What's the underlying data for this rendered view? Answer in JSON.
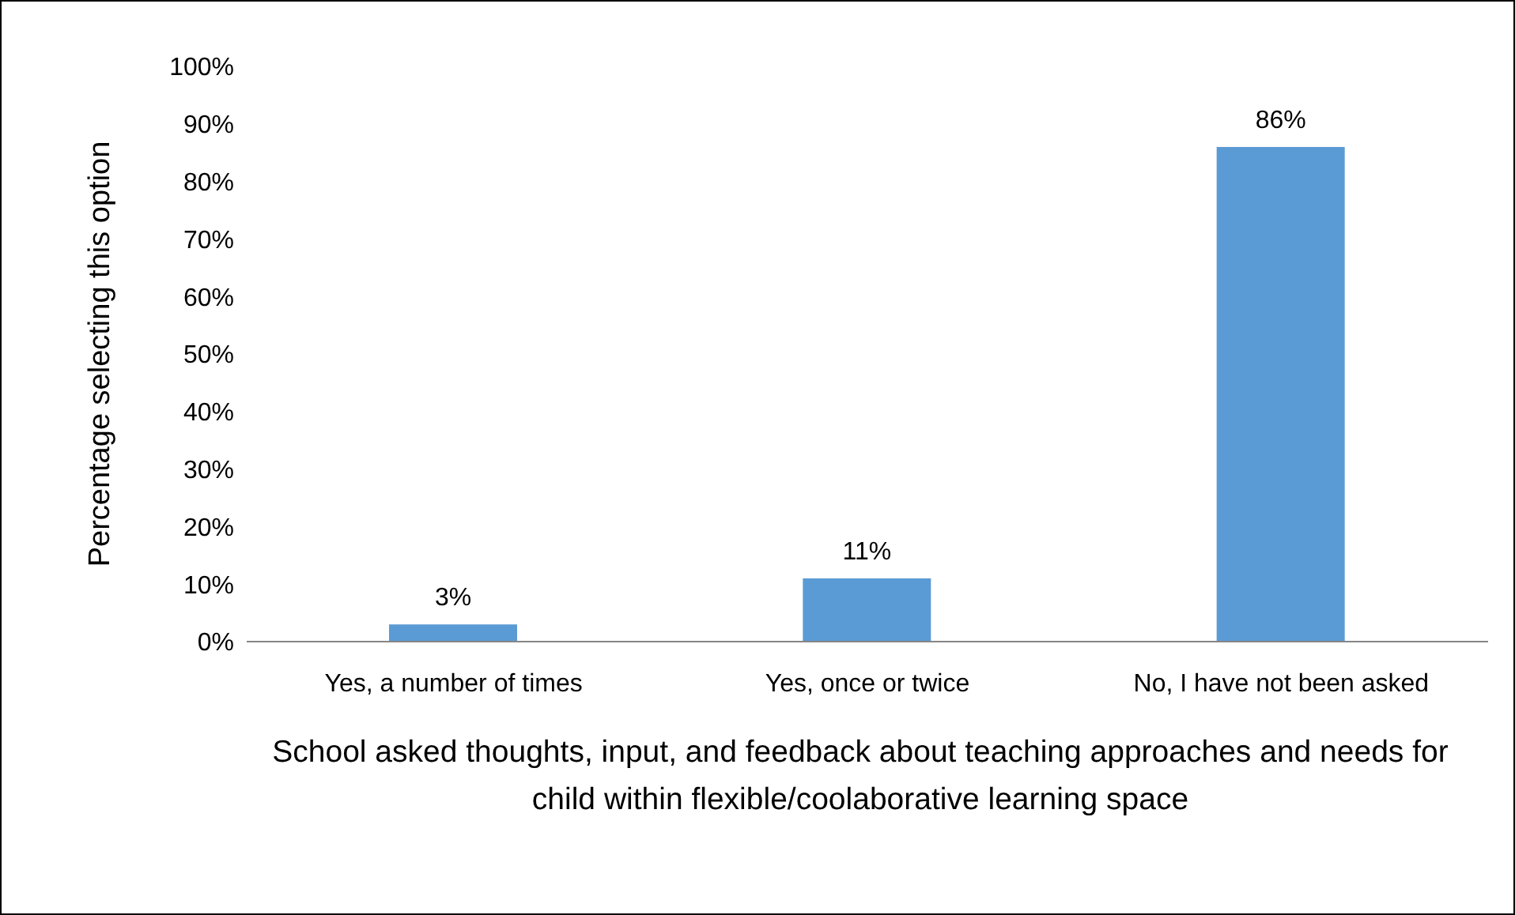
{
  "chart_data": {
    "type": "bar",
    "xlabel": "School asked thoughts, input, and feedback about teaching approaches and needs for child within flexible/coolaborative learning space",
    "ylabel": "Percentage selecting this option",
    "categories": [
      "Yes, a number of times",
      "Yes, once or twice",
      "No, I have not been asked"
    ],
    "values": [
      3,
      11,
      86
    ],
    "value_labels": [
      "3%",
      "11%",
      "86%"
    ],
    "color": "#5b9bd5",
    "ylim": [
      0,
      100
    ],
    "yticks": [
      {
        "value": 0,
        "label": "0%"
      },
      {
        "value": 10,
        "label": "10%"
      },
      {
        "value": 20,
        "label": "20%"
      },
      {
        "value": 30,
        "label": "30%"
      },
      {
        "value": 40,
        "label": "40%"
      },
      {
        "value": 50,
        "label": "50%"
      },
      {
        "value": 60,
        "label": "60%"
      },
      {
        "value": 70,
        "label": "70%"
      },
      {
        "value": 80,
        "label": "80%"
      },
      {
        "value": 90,
        "label": "90%"
      },
      {
        "value": 100,
        "label": "100%"
      }
    ]
  }
}
